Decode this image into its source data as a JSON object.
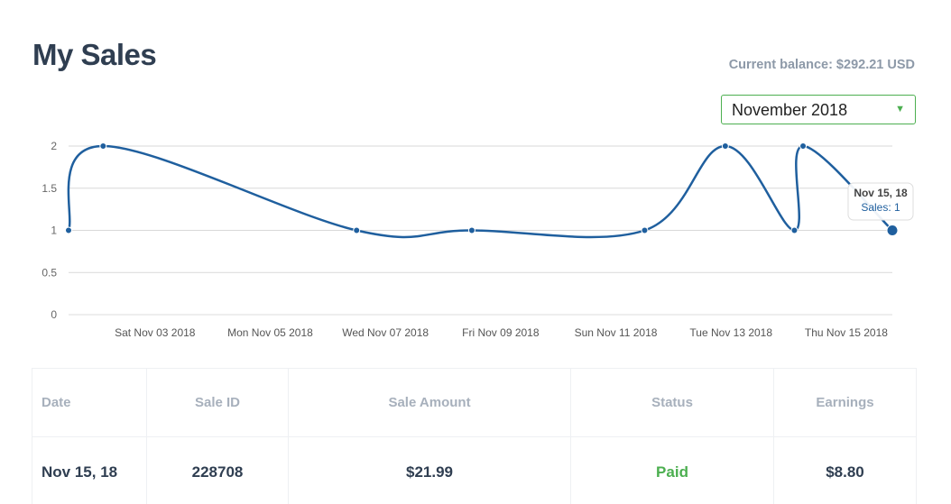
{
  "page": {
    "title": "My Sales",
    "balance": "Current balance: $292.21 USD"
  },
  "month_select": {
    "value": "November 2018",
    "caret": "▼"
  },
  "chart_data": {
    "type": "line",
    "x": [
      "2018-11-02",
      "2018-11-03",
      "2018-11-07",
      "2018-11-09",
      "2018-11-12",
      "2018-11-13",
      "2018-11-14",
      "2018-11-14",
      "2018-11-15"
    ],
    "x_pos": [
      2.0,
      2.6,
      7.0,
      9.0,
      12.0,
      13.4,
      14.6,
      14.75,
      16.3
    ],
    "values": [
      1,
      2,
      1,
      1,
      1,
      2,
      1,
      2,
      1
    ],
    "yticks": [
      "0",
      "0.5",
      "1",
      "1.5",
      "2"
    ],
    "ylim": [
      0,
      2
    ],
    "xticks": [
      "Sat Nov 03 2018",
      "Mon Nov 05 2018",
      "Wed Nov 07 2018",
      "Fri Nov 09 2018",
      "Sun Nov 11 2018",
      "Tue Nov 13 2018",
      "Thu Nov 15 2018"
    ],
    "xtick_pos": [
      3.5,
      5.5,
      7.5,
      9.5,
      11.5,
      13.5,
      15.5
    ],
    "grid": true,
    "line_color": "#1f5f9e",
    "tooltip": {
      "title": "Nov 15, 18",
      "text": "Sales: 1",
      "point_index": 8
    }
  },
  "table": {
    "columns": [
      "Date",
      "Sale ID",
      "Sale Amount",
      "Status",
      "Earnings"
    ],
    "rows": [
      {
        "date": "Nov 15, 18",
        "sale_id": "228708",
        "amount": "$21.99",
        "status": "Paid",
        "earnings": "$8.80"
      }
    ]
  },
  "colors": {
    "accent": "#4caf50",
    "line": "#1f5f9e",
    "title": "#2f3e51",
    "muted": "#8d99a8"
  }
}
